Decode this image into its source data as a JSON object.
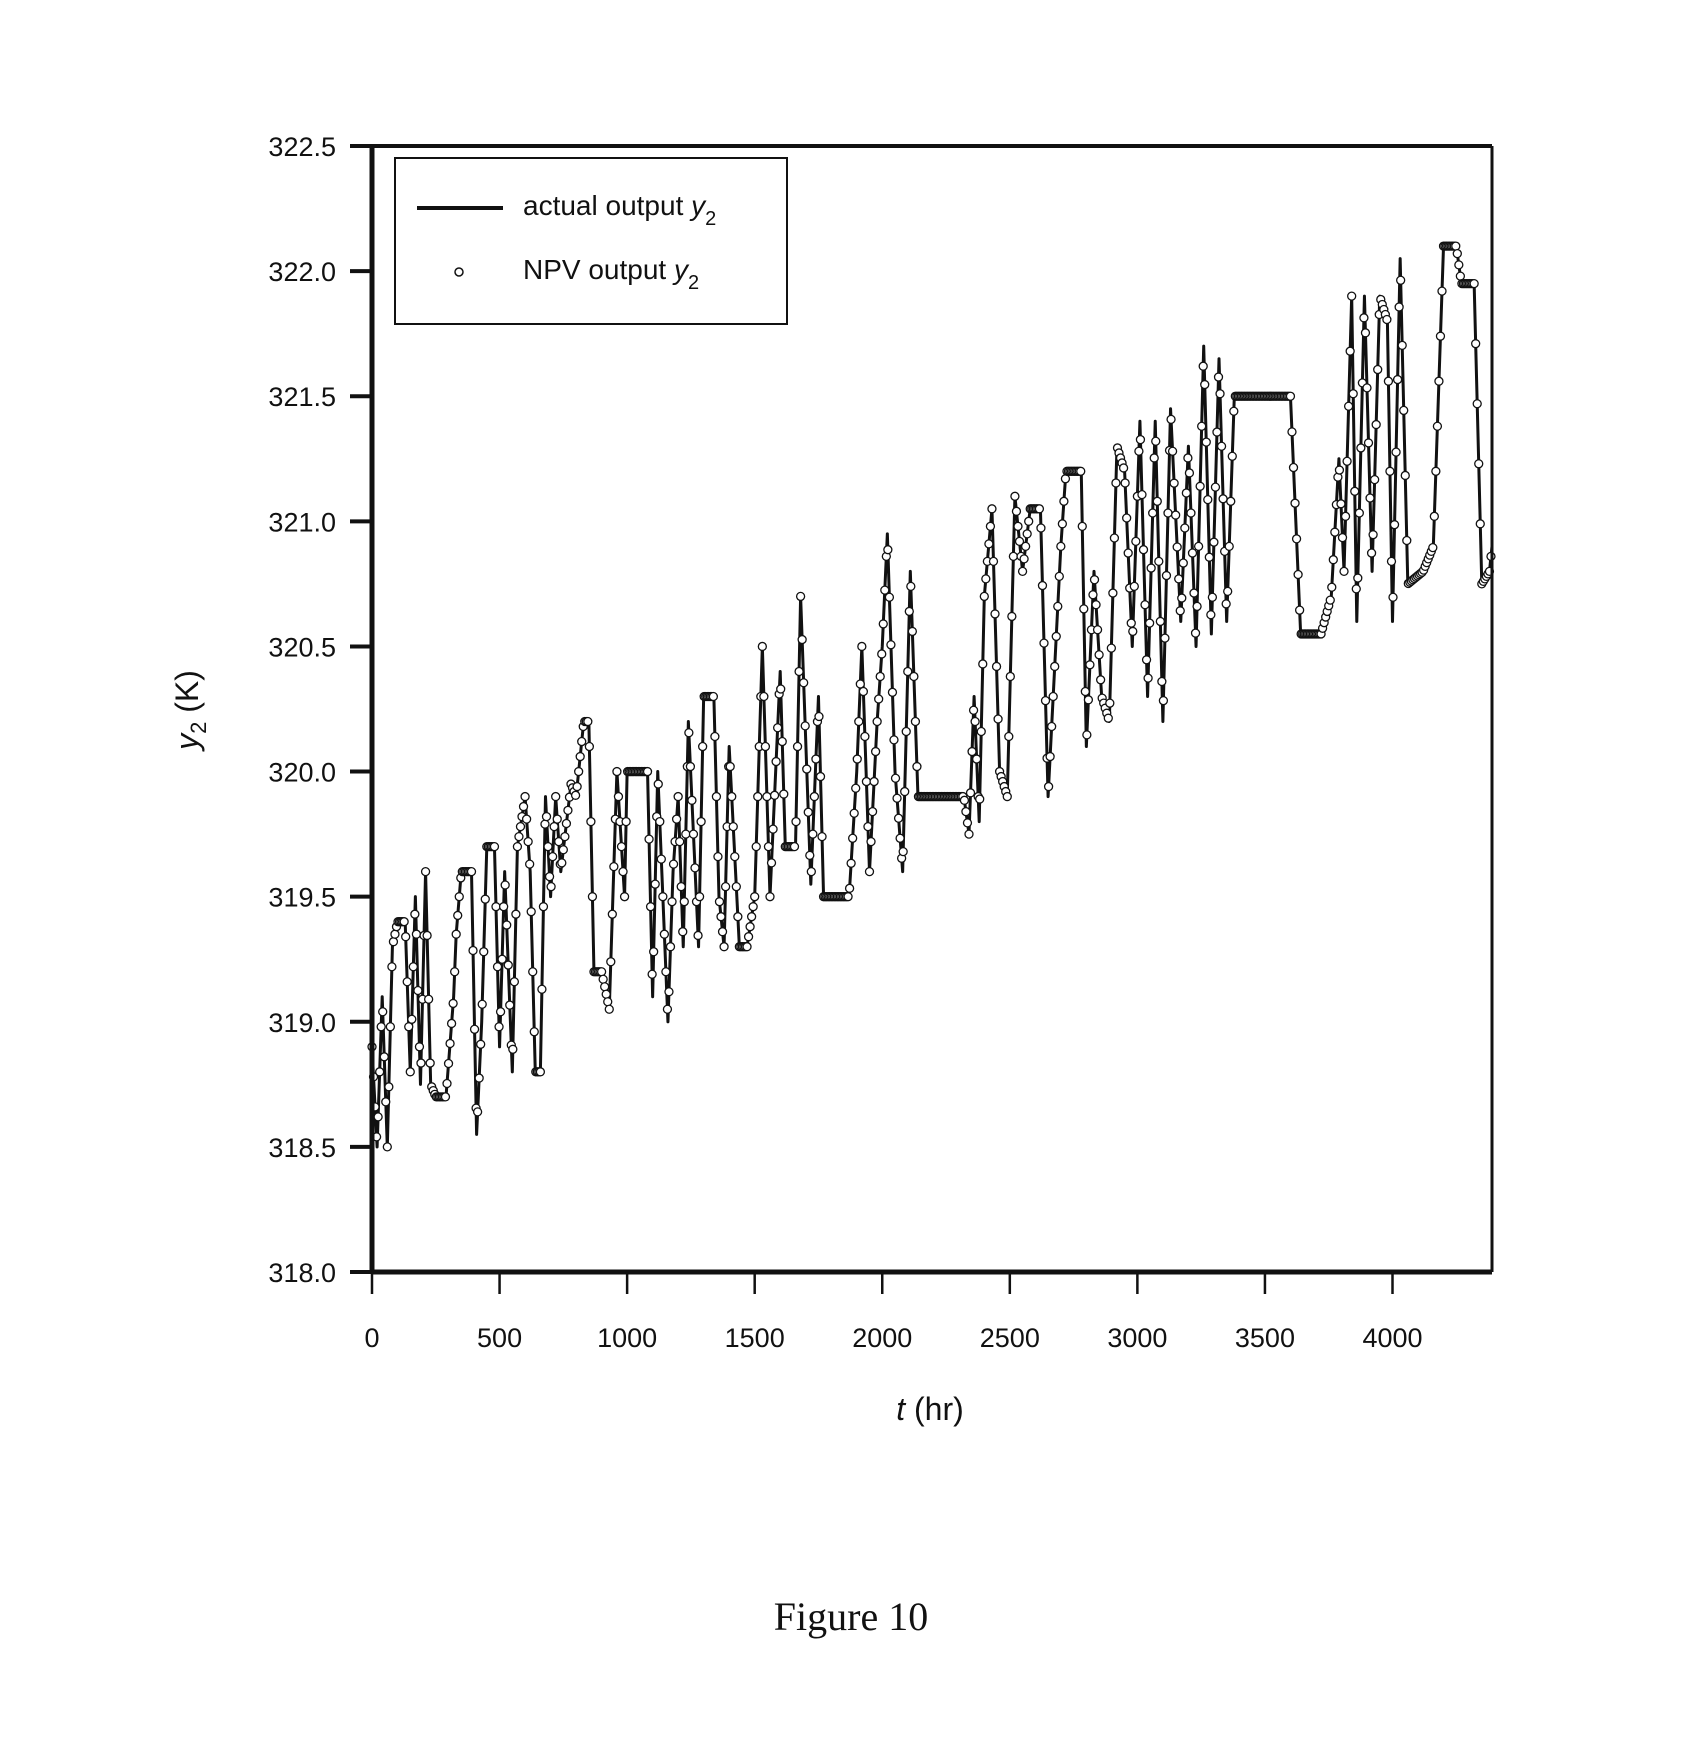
{
  "chart_data": {
    "type": "line",
    "title": "",
    "caption": "Figure 10",
    "xlabel": {
      "var": "t",
      "unit": " (hr)"
    },
    "ylabel": {
      "var": "y",
      "sub": "2",
      "unit": " (K)"
    },
    "xlim": [
      0,
      4390
    ],
    "ylim": [
      318.0,
      322.5
    ],
    "xticks": [
      "0",
      "500",
      "1000",
      "1500",
      "2000",
      "2500",
      "3000",
      "3500",
      "4000"
    ],
    "xtick_values": [
      0,
      500,
      1000,
      1500,
      2000,
      2500,
      3000,
      3500,
      4000
    ],
    "yticks": [
      "318.0",
      "318.5",
      "319.0",
      "319.5",
      "320.0",
      "320.5",
      "321.0",
      "321.5",
      "322.0",
      "322.5"
    ],
    "ytick_values": [
      318.0,
      318.5,
      319.0,
      319.5,
      320.0,
      320.5,
      321.0,
      321.5,
      322.0,
      322.5
    ],
    "grid": false,
    "legend_position": "top-left",
    "legend": [
      {
        "label": "actual output ",
        "var": "y",
        "sub": "2",
        "marker": "line"
      },
      {
        "label": "NPV output ",
        "var": "y",
        "sub": "2",
        "marker": "circle"
      }
    ],
    "series": [
      {
        "name": "actual output y2",
        "style": "line",
        "points": [
          [
            0,
            318.9
          ],
          [
            20,
            318.5
          ],
          [
            40,
            319.1
          ],
          [
            60,
            318.5
          ],
          [
            80,
            319.3
          ],
          [
            100,
            319.4
          ],
          [
            130,
            319.4
          ],
          [
            150,
            318.8
          ],
          [
            170,
            319.5
          ],
          [
            190,
            318.75
          ],
          [
            210,
            319.6
          ],
          [
            230,
            318.75
          ],
          [
            250,
            318.7
          ],
          [
            290,
            318.7
          ],
          [
            320,
            319.1
          ],
          [
            330,
            319.35
          ],
          [
            350,
            319.6
          ],
          [
            390,
            319.6
          ],
          [
            410,
            318.55
          ],
          [
            430,
            319.0
          ],
          [
            450,
            319.7
          ],
          [
            480,
            319.7
          ],
          [
            500,
            318.9
          ],
          [
            520,
            319.6
          ],
          [
            550,
            318.8
          ],
          [
            570,
            319.7
          ],
          [
            600,
            319.9
          ],
          [
            620,
            319.6
          ],
          [
            640,
            318.8
          ],
          [
            660,
            318.8
          ],
          [
            680,
            319.9
          ],
          [
            700,
            319.5
          ],
          [
            720,
            319.9
          ],
          [
            740,
            319.6
          ],
          [
            780,
            319.95
          ],
          [
            800,
            319.9
          ],
          [
            830,
            320.2
          ],
          [
            850,
            320.2
          ],
          [
            870,
            319.2
          ],
          [
            900,
            319.2
          ],
          [
            930,
            319.05
          ],
          [
            960,
            320.0
          ],
          [
            990,
            319.5
          ],
          [
            1000,
            320.0
          ],
          [
            1080,
            320.0
          ],
          [
            1100,
            319.1
          ],
          [
            1120,
            320.0
          ],
          [
            1160,
            319.0
          ],
          [
            1180,
            319.6
          ],
          [
            1200,
            319.9
          ],
          [
            1220,
            319.3
          ],
          [
            1240,
            320.2
          ],
          [
            1280,
            319.3
          ],
          [
            1300,
            320.3
          ],
          [
            1340,
            320.3
          ],
          [
            1360,
            319.5
          ],
          [
            1380,
            319.3
          ],
          [
            1400,
            320.1
          ],
          [
            1440,
            319.3
          ],
          [
            1470,
            319.3
          ],
          [
            1500,
            319.5
          ],
          [
            1530,
            320.5
          ],
          [
            1560,
            319.5
          ],
          [
            1600,
            320.4
          ],
          [
            1620,
            319.7
          ],
          [
            1660,
            319.7
          ],
          [
            1680,
            320.7
          ],
          [
            1720,
            319.55
          ],
          [
            1750,
            320.3
          ],
          [
            1770,
            319.5
          ],
          [
            1870,
            319.5
          ],
          [
            1900,
            320.0
          ],
          [
            1920,
            320.5
          ],
          [
            1950,
            319.6
          ],
          [
            1980,
            320.2
          ],
          [
            2000,
            320.5
          ],
          [
            2020,
            320.95
          ],
          [
            2050,
            320.0
          ],
          [
            2080,
            319.6
          ],
          [
            2110,
            320.8
          ],
          [
            2140,
            319.9
          ],
          [
            2320,
            319.9
          ],
          [
            2340,
            319.75
          ],
          [
            2360,
            320.3
          ],
          [
            2380,
            319.8
          ],
          [
            2400,
            320.7
          ],
          [
            2430,
            321.05
          ],
          [
            2460,
            320.0
          ],
          [
            2490,
            319.9
          ],
          [
            2520,
            321.1
          ],
          [
            2550,
            320.8
          ],
          [
            2580,
            321.05
          ],
          [
            2620,
            321.05
          ],
          [
            2650,
            319.9
          ],
          [
            2680,
            320.5
          ],
          [
            2700,
            320.9
          ],
          [
            2720,
            321.2
          ],
          [
            2780,
            321.2
          ],
          [
            2800,
            320.1
          ],
          [
            2830,
            320.8
          ],
          [
            2860,
            320.3
          ],
          [
            2890,
            320.2
          ],
          [
            2920,
            321.3
          ],
          [
            2950,
            321.2
          ],
          [
            2980,
            320.5
          ],
          [
            3010,
            321.4
          ],
          [
            3040,
            320.3
          ],
          [
            3070,
            321.4
          ],
          [
            3100,
            320.2
          ],
          [
            3130,
            321.45
          ],
          [
            3170,
            320.6
          ],
          [
            3200,
            321.3
          ],
          [
            3230,
            320.5
          ],
          [
            3260,
            321.7
          ],
          [
            3290,
            320.55
          ],
          [
            3320,
            321.65
          ],
          [
            3350,
            320.6
          ],
          [
            3380,
            321.5
          ],
          [
            3420,
            321.5
          ],
          [
            3600,
            321.5
          ],
          [
            3640,
            320.55
          ],
          [
            3720,
            320.55
          ],
          [
            3760,
            320.7
          ],
          [
            3790,
            321.25
          ],
          [
            3810,
            320.8
          ],
          [
            3840,
            321.9
          ],
          [
            3860,
            320.6
          ],
          [
            3890,
            321.9
          ],
          [
            3920,
            320.8
          ],
          [
            3950,
            321.9
          ],
          [
            3980,
            321.8
          ],
          [
            4000,
            320.6
          ],
          [
            4030,
            322.05
          ],
          [
            4060,
            320.75
          ],
          [
            4120,
            320.8
          ],
          [
            4160,
            320.9
          ],
          [
            4200,
            322.1
          ],
          [
            4250,
            322.1
          ],
          [
            4270,
            321.95
          ],
          [
            4320,
            321.95
          ],
          [
            4350,
            320.75
          ],
          [
            4380,
            320.8
          ],
          [
            4390,
            320.9
          ]
        ]
      },
      {
        "name": "NPV output y2",
        "style": "open-circles",
        "sample_step_hr": 6,
        "follows": "actual output y2"
      }
    ]
  }
}
